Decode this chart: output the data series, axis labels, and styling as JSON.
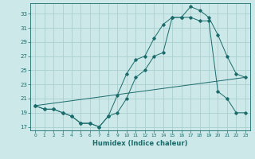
{
  "xlabel": "Humidex (Indice chaleur)",
  "background_color": "#cce8e8",
  "grid_color": "#aacfcf",
  "line_color": "#1a6b6b",
  "xlim": [
    -0.5,
    23.5
  ],
  "ylim": [
    16.5,
    34.5
  ],
  "xticks": [
    0,
    1,
    2,
    3,
    4,
    5,
    6,
    7,
    8,
    9,
    10,
    11,
    12,
    13,
    14,
    15,
    16,
    17,
    18,
    19,
    20,
    21,
    22,
    23
  ],
  "yticks": [
    17,
    19,
    21,
    23,
    25,
    27,
    29,
    31,
    33
  ],
  "line1_x": [
    0,
    1,
    2,
    3,
    4,
    5,
    6,
    7,
    8,
    9,
    10,
    11,
    12,
    13,
    14,
    15,
    16,
    17,
    18,
    19,
    20,
    21,
    22,
    23
  ],
  "line1_y": [
    20,
    19.5,
    19.5,
    19,
    18.5,
    17.5,
    17.5,
    17,
    18.5,
    21.5,
    24.5,
    26.5,
    27,
    29.5,
    31.5,
    32.5,
    32.5,
    34,
    33.5,
    32.5,
    30,
    27,
    24.5,
    24
  ],
  "line2_x": [
    0,
    1,
    2,
    3,
    4,
    5,
    6,
    7,
    8,
    9,
    10,
    11,
    12,
    13,
    14,
    15,
    16,
    17,
    18,
    19,
    20,
    21,
    22,
    23
  ],
  "line2_y": [
    20,
    19.5,
    19.5,
    19,
    18.5,
    17.5,
    17.5,
    17,
    18.5,
    19,
    21,
    24,
    25,
    27,
    27.5,
    32.5,
    32.5,
    32.5,
    32,
    32,
    22,
    21,
    19,
    19
  ],
  "line3_x": [
    0,
    23
  ],
  "line3_y": [
    20.0,
    24.0
  ]
}
